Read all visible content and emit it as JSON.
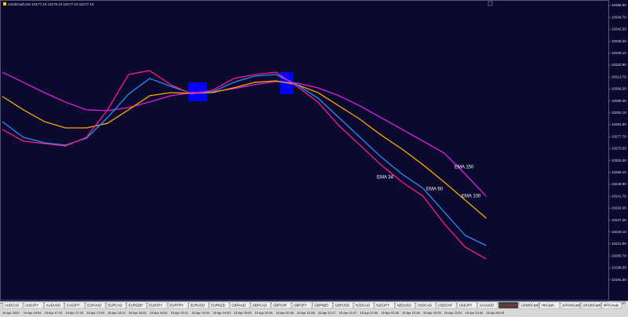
{
  "chart_data": {
    "type": "line",
    "title": "US30Cash,M1  10177.10 10179.10 10177.10 10177.10",
    "categories": [
      "15 Apr 2020",
      "15 Apr 16:54",
      "15 Apr 17:14",
      "15 Apr 17:33",
      "15 Apr 17:53",
      "15 Apr 18:12",
      "15 Apr 18:32",
      "15 Apr 18:51",
      "15 Apr 19:11",
      "15 Apr 19:30",
      "15 Apr 19:50",
      "15 Apr 20:09",
      "15 Apr 20:29",
      "15 Apr 20:48",
      "15 Apr 21:08",
      "15 Apr 21:27",
      "15 Apr 21:47",
      "15 Apr 22:06",
      "15 Apr 22:26",
      "15 Apr 22:45",
      "15 Apr 23:05",
      "15 Apr 23:24",
      "15 Apr 23:44",
      "16 Apr 00:03"
    ],
    "series": [
      {
        "name": "EMA 150",
        "color": "#e020e0",
        "values": [
          10316.6,
          10310.5,
          10304.3,
          10298.6,
          10293.9,
          10293.4,
          10295.3,
          10298.6,
          10302.4,
          10304.3,
          10304.8,
          10306.7,
          10309.1,
          10311.0,
          10310.0,
          10307.2,
          10302.4,
          10296.3,
          10289.2,
          10282.1,
          10275.0,
          10267.8,
          10255.1,
          10241.8
        ]
      },
      {
        "name": "EMA 100",
        "color": "#ffa500",
        "values": [
          10302.0,
          10293.9,
          10286.8,
          10283.0,
          10283.0,
          10285.8,
          10293.9,
          10302.4,
          10304.3,
          10303.8,
          10304.3,
          10307.2,
          10310.5,
          10311.4,
          10309.1,
          10304.3,
          10296.3,
          10288.2,
          10278.7,
          10270.2,
          10260.7,
          10250.3,
          10239.4,
          10228.5
        ]
      },
      {
        "name": "EMA 50",
        "color": "#2a8cff",
        "values": [
          10286.8,
          10277.3,
          10274.0,
          10272.6,
          10276.8,
          10289.2,
          10303.4,
          10312.8,
          10308.1,
          10303.8,
          10304.8,
          10310.5,
          10314.3,
          10315.2,
          10309.1,
          10301.0,
          10289.2,
          10277.3,
          10265.5,
          10255.1,
          10246.5,
          10232.3,
          10218.1,
          10212.0
        ]
      },
      {
        "name": "EMA 34",
        "color": "#ff1a8c",
        "values": [
          10282.1,
          10275.0,
          10273.5,
          10272.1,
          10277.3,
          10293.9,
          10315.2,
          10317.6,
          10309.1,
          10303.4,
          10305.7,
          10312.8,
          10315.2,
          10316.6,
          10308.1,
          10298.6,
          10284.4,
          10272.6,
          10260.7,
          10250.3,
          10241.8,
          10225.2,
          10211.0,
          10203.9
        ]
      }
    ],
    "ylim": [
      10173.1,
      10360.2
    ],
    "yticks": [
      {
        "value": 10356.9,
        "label": "10356.90"
      },
      {
        "value": 10349.7,
        "label": "10349.70"
      },
      {
        "value": 10342.5,
        "label": "10342.50"
      },
      {
        "value": 10335.3,
        "label": "10335.30"
      },
      {
        "value": 10328.1,
        "label": "10328.10"
      },
      {
        "value": 10320.9,
        "label": "10320.90"
      },
      {
        "value": 10313.7,
        "label": "10313.70"
      },
      {
        "value": 10306.5,
        "label": "10306.50"
      },
      {
        "value": 10299.3,
        "label": "10299.30"
      },
      {
        "value": 10292.1,
        "label": "10292.10"
      },
      {
        "value": 10284.9,
        "label": "10284.90"
      },
      {
        "value": 10277.7,
        "label": "10277.70"
      },
      {
        "value": 10270.5,
        "label": "10270.50"
      },
      {
        "value": 10263.3,
        "label": "10263.30"
      },
      {
        "value": 10256.1,
        "label": "10256.10"
      },
      {
        "value": 10248.9,
        "label": "10248.90"
      },
      {
        "value": 10241.7,
        "label": "10241.70"
      },
      {
        "value": 10234.5,
        "label": "10234.50"
      },
      {
        "value": 10227.3,
        "label": "10227.30"
      },
      {
        "value": 10220.1,
        "label": "10220.10"
      },
      {
        "value": 10212.9,
        "label": "10212.90"
      },
      {
        "value": 10205.7,
        "label": "10205.70"
      },
      {
        "value": 10198.5,
        "label": "10198.50"
      },
      {
        "value": 10191.3,
        "label": "10191.30"
      }
    ],
    "current_price": {
      "value": 10177.1,
      "label": "10177.10"
    },
    "grid": false
  },
  "tabs": [
    "AUDCAD",
    "AUDJPY",
    "AUDUSD",
    "CADJPY",
    "EURAUD",
    "EURCAD",
    "EURGBP",
    "EURJPY",
    "EURTRY",
    "EURUSD",
    "EURNZD",
    "GBPAUD",
    "GBPCAD",
    "GBPCHF",
    "GBPJPY",
    "GBPNZD",
    "GBPUSD",
    "NZDCAD",
    "NZDJPY",
    "NZDUSD",
    "USDCAD",
    "USDCHF",
    "USDJPY",
    "XAUUSD",
    "US30Cash",
    "US500Cash",
    "HKCash",
    "JAPANCash",
    "UK100Cash",
    "WTICrude"
  ],
  "active_tab_index": 24
}
